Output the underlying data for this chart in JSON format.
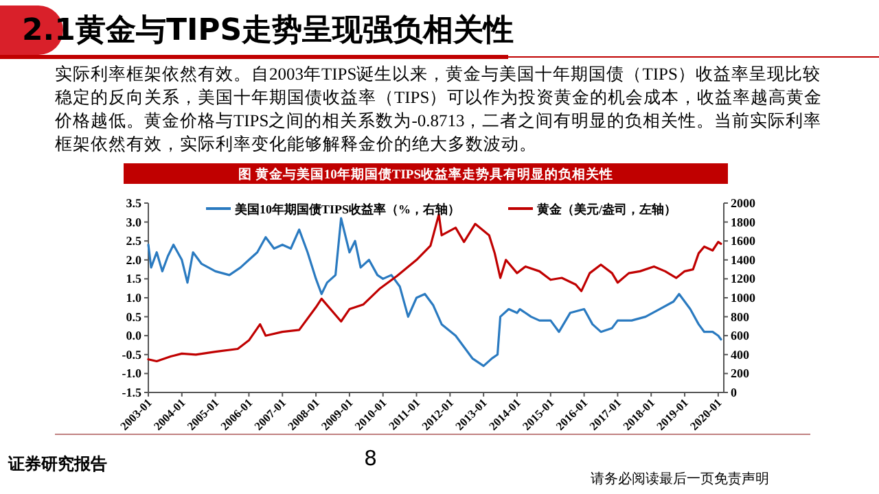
{
  "chart_data": {
    "type": "line",
    "title": "2.1黄金与TIPS走势呈现强负相关性",
    "subtitle": "图 黄金与美国10年期国债TIPS收益率走势具有明显的负相关性",
    "annotations": [
      "实际利率框架依然有效。自2003年TIPS诞生以来，黄金与美国十年期国债（TIPS）收益率呈现比较稳定的反向关系，美国十年期国债收益率（TIPS）可以作为投资黄金的机会成本，收益率越高黄金价格越低。黄金价格与TIPS之间的相关系数为-0.8713，二者之间有明显的负相关性。当前实际利率框架依然有效，实际利率变化能够解释金价的绝大多数波动。",
      "证券研究报告",
      "8",
      "请务必阅读最后一页免责声明"
    ],
    "xlim": [
      "2003-01",
      "2020-03"
    ],
    "xticks": [
      "2003-01",
      "2004-01",
      "2005-01",
      "2006-01",
      "2007-01",
      "2008-01",
      "2009-01",
      "2010-01",
      "2011-01",
      "2012-01",
      "2013-01",
      "2014-01",
      "2015-01",
      "2016-01",
      "2017-01",
      "2018-01",
      "2019-01",
      "2020-01"
    ],
    "ylim": [
      -1.5,
      3.5
    ],
    "yticks": [
      {
        "value": -1.5,
        "label": "-1.5"
      },
      {
        "value": -1,
        "label": "-1.0"
      },
      {
        "value": -0.5,
        "label": "-0.5"
      },
      {
        "value": 0,
        "label": "0.0"
      },
      {
        "value": 0.5,
        "label": "0.5"
      },
      {
        "value": 1,
        "label": "1.0"
      },
      {
        "value": 1.5,
        "label": "1.5"
      },
      {
        "value": 2,
        "label": "2.0"
      },
      {
        "value": 2.5,
        "label": "2.5"
      },
      {
        "value": 3,
        "label": "3.0"
      },
      {
        "value": 3.5,
        "label": "3.5"
      }
    ],
    "y2lim": [
      0,
      2000
    ],
    "y2ticks": [
      0,
      200,
      400,
      600,
      800,
      1000,
      1200,
      1400,
      1600,
      1800,
      2000
    ],
    "legend": "top",
    "grid": false,
    "line_style": "solid",
    "series": [
      {
        "name": "美国10年期国债TIPS收益率（%，右轴）",
        "color": "#2a7ac0",
        "x": [
          "2003-01",
          "2003-02",
          "2003-04",
          "2003-06",
          "2003-08",
          "2003-10",
          "2004-01",
          "2004-03",
          "2004-05",
          "2004-08",
          "2005-01",
          "2005-06",
          "2005-10",
          "2006-01",
          "2006-04",
          "2006-07",
          "2006-10",
          "2007-01",
          "2007-04",
          "2007-07",
          "2007-10",
          "2008-01",
          "2008-03",
          "2008-05",
          "2008-08",
          "2008-10",
          "2009-01",
          "2009-03",
          "2009-05",
          "2009-08",
          "2009-11",
          "2010-01",
          "2010-04",
          "2010-07",
          "2010-10",
          "2011-01",
          "2011-04",
          "2011-07",
          "2011-10",
          "2012-03",
          "2012-06",
          "2012-09",
          "2013-01",
          "2013-04",
          "2013-06",
          "2013-07",
          "2013-10",
          "2014-01",
          "2014-02",
          "2014-06",
          "2014-09",
          "2015-01",
          "2015-04",
          "2015-08",
          "2016-01",
          "2016-04",
          "2016-07",
          "2016-11",
          "2017-01",
          "2017-06",
          "2017-11",
          "2018-04",
          "2018-09",
          "2018-11",
          "2019-03",
          "2019-06",
          "2019-08",
          "2019-11",
          "2020-01",
          "2020-02"
        ],
        "values": [
          2.4,
          1.8,
          2.2,
          1.7,
          2.1,
          2.4,
          2.0,
          1.4,
          2.2,
          1.9,
          1.7,
          1.6,
          1.8,
          2.0,
          2.2,
          2.6,
          2.3,
          2.4,
          2.3,
          2.8,
          2.2,
          1.5,
          1.1,
          1.4,
          1.6,
          3.1,
          2.2,
          2.5,
          1.8,
          2.0,
          1.6,
          1.5,
          1.6,
          1.3,
          0.5,
          1.0,
          1.1,
          0.8,
          0.3,
          0.0,
          -0.3,
          -0.6,
          -0.8,
          -0.6,
          -0.5,
          0.5,
          0.7,
          0.6,
          0.7,
          0.5,
          0.4,
          0.4,
          0.1,
          0.6,
          0.7,
          0.3,
          0.1,
          0.2,
          0.4,
          0.4,
          0.5,
          0.7,
          0.9,
          1.1,
          0.7,
          0.3,
          0.1,
          0.1,
          0.0,
          -0.1
        ]
      },
      {
        "name": "黄金（美元/盎司，左轴）",
        "color": "#c00000",
        "axis": "y2",
        "x": [
          "2003-01",
          "2003-04",
          "2003-09",
          "2004-01",
          "2004-06",
          "2005-01",
          "2005-09",
          "2006-01",
          "2006-05",
          "2006-07",
          "2007-01",
          "2007-07",
          "2008-01",
          "2008-03",
          "2008-10",
          "2009-01",
          "2009-06",
          "2009-12",
          "2010-06",
          "2011-01",
          "2011-06",
          "2011-09",
          "2011-10",
          "2012-03",
          "2012-06",
          "2012-10",
          "2013-03",
          "2013-05",
          "2013-07",
          "2013-09",
          "2014-01",
          "2014-04",
          "2014-09",
          "2015-01",
          "2015-05",
          "2015-10",
          "2015-12",
          "2016-03",
          "2016-07",
          "2016-11",
          "2017-01",
          "2017-05",
          "2017-09",
          "2018-02",
          "2018-06",
          "2018-10",
          "2019-01",
          "2019-04",
          "2019-06",
          "2019-08",
          "2019-11",
          "2020-01",
          "2020-02"
        ],
        "values": [
          350,
          330,
          380,
          410,
          400,
          430,
          460,
          550,
          720,
          600,
          640,
          660,
          900,
          990,
          750,
          880,
          930,
          1100,
          1230,
          1400,
          1550,
          1880,
          1660,
          1740,
          1590,
          1780,
          1660,
          1470,
          1210,
          1400,
          1260,
          1330,
          1280,
          1190,
          1210,
          1140,
          1070,
          1260,
          1350,
          1260,
          1160,
          1260,
          1280,
          1330,
          1280,
          1210,
          1280,
          1300,
          1470,
          1540,
          1500,
          1590,
          1570
        ]
      }
    ]
  }
}
